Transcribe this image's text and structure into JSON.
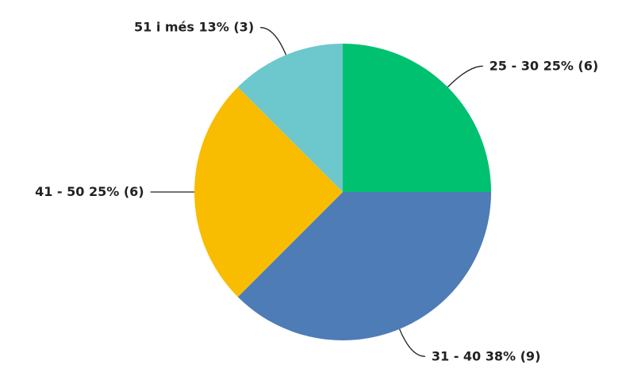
{
  "chart_data": {
    "type": "pie",
    "categories": [
      "25 - 30",
      "31 - 40",
      "41 - 50",
      "51 i més"
    ],
    "values": [
      6,
      9,
      6,
      3
    ],
    "value_labels": [
      "25% (6)",
      "38% (9)",
      "25% (6)",
      "13% (3)"
    ],
    "colors": [
      "#00c170",
      "#4e7cb6",
      "#f8bc00",
      "#6cc8cc"
    ]
  }
}
